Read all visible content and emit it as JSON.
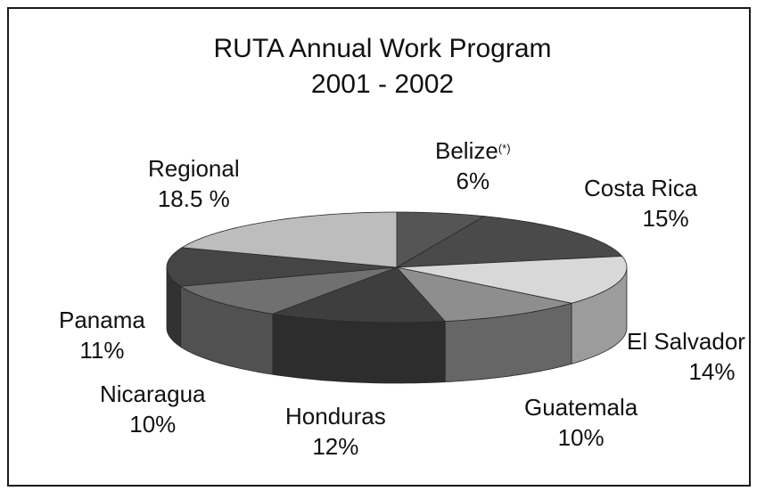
{
  "chart_data": {
    "type": "pie",
    "title_line1": "RUTA Annual Work Program",
    "title_line2": "2001 - 2002",
    "slices": [
      {
        "name": "Belize",
        "name_suffix": "(*)",
        "value": 6,
        "value_label": "6%",
        "color": "#555555"
      },
      {
        "name": "Costa Rica",
        "value": 15,
        "value_label": "15%",
        "color": "#4a4a4a"
      },
      {
        "name": "El Salvador",
        "value": 14,
        "value_label": "14%",
        "color": "#d8d8d8"
      },
      {
        "name": "Guatemala",
        "value": 10,
        "value_label": "10%",
        "color": "#8e8e8e"
      },
      {
        "name": "Honduras",
        "value": 12,
        "value_label": "12%",
        "color": "#3e3e3e"
      },
      {
        "name": "Nicaragua",
        "value": 10,
        "value_label": "10%",
        "color": "#707070"
      },
      {
        "name": "Panama",
        "value": 11,
        "value_label": "11%",
        "color": "#454545"
      },
      {
        "name": "Regional",
        "value": 18.5,
        "value_label": "18.5 %",
        "color": "#bdbdbd"
      }
    ],
    "style": "3d-tilted",
    "start": "top, clockwise"
  }
}
